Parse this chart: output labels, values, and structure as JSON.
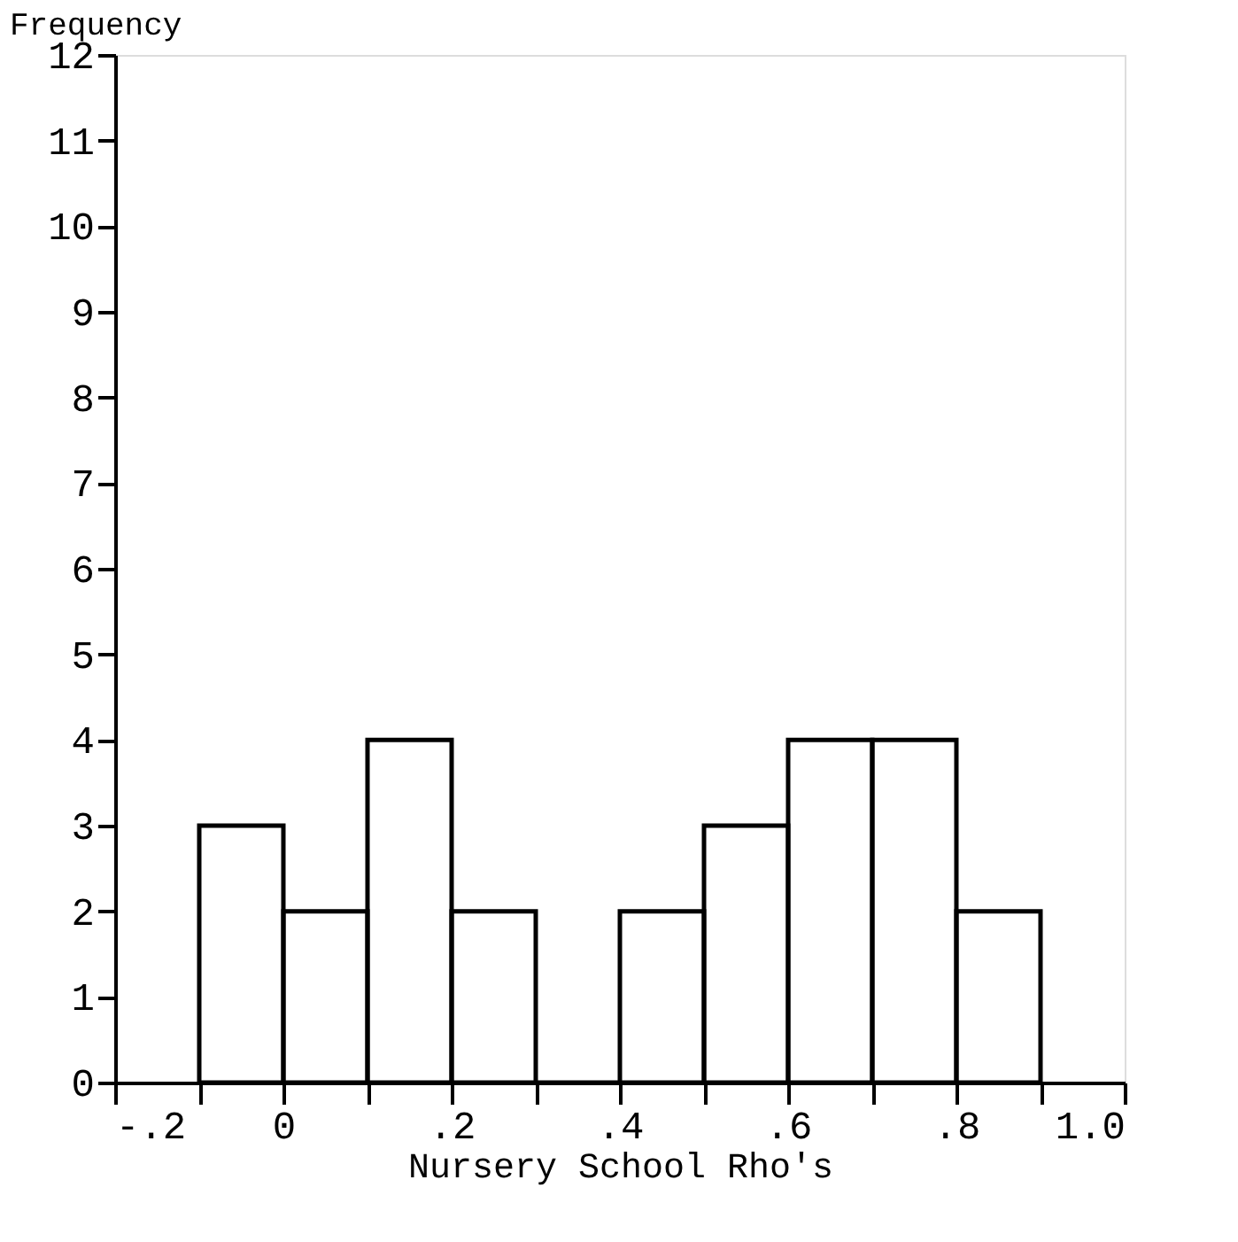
{
  "chart_data": {
    "type": "histogram",
    "xlabel": "Nursery School Rho's",
    "ylabel": "Frequency",
    "bins": [
      -0.1,
      0,
      0.1,
      0.2,
      0.3,
      0.4,
      0.5,
      0.6,
      0.7,
      0.8,
      0.9
    ],
    "values": [
      3,
      2,
      4,
      2,
      0,
      2,
      3,
      4,
      4,
      2
    ],
    "color": "#000000",
    "xlim": [
      -0.2,
      1.0
    ],
    "xticks": [
      {
        "value": -0.2,
        "label": "-.2"
      },
      {
        "value": -0.1,
        "label": null
      },
      0,
      {
        "value": 0.1,
        "label": null
      },
      {
        "value": 0.2,
        "label": ".2"
      },
      {
        "value": 0.3,
        "label": null
      },
      {
        "value": 0.4,
        "label": ".4"
      },
      {
        "value": 0.5,
        "label": null
      },
      {
        "value": 0.6,
        "label": ".6"
      },
      {
        "value": 0.7,
        "label": null
      },
      {
        "value": 0.8,
        "label": ".8"
      },
      {
        "value": 0.9,
        "label": null
      },
      {
        "value": 1.0,
        "label": "1.0"
      }
    ],
    "ylim": [
      0,
      12
    ],
    "yticks": [
      0,
      1,
      2,
      3,
      4,
      5,
      6,
      7,
      8,
      9,
      10,
      11,
      12
    ],
    "grid": false
  }
}
